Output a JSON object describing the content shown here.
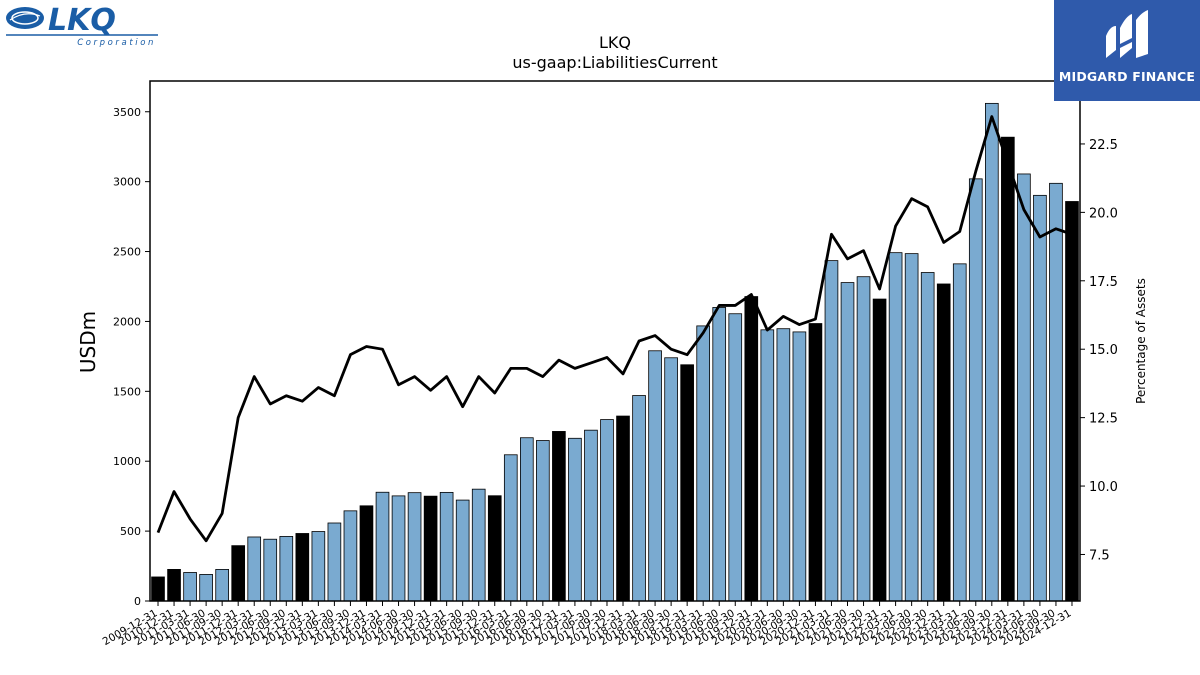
{
  "logos": {
    "lkq_text": "LKQ",
    "lkq_sub": "Corporation",
    "midgard_text": "MIDGARD FINANCE"
  },
  "colors": {
    "bar_light": "#7aaad0",
    "bar_dark": "#000000",
    "line": "#000000",
    "lkq_blue": "#1a5da6",
    "midgard_bg": "#2f5aab"
  },
  "chart_data": {
    "type": "bar",
    "title": "LKQ",
    "subtitle": "us-gaap:LiabilitiesCurrent",
    "ylabel": "USDm",
    "y2label": "Percentage of Assets",
    "ylim": [
      0,
      3720
    ],
    "y2lim": [
      5.8,
      24.8
    ],
    "yticks": [
      0,
      500,
      1000,
      1500,
      2000,
      2500,
      3000,
      3500
    ],
    "y2ticks": [
      7.5,
      10.0,
      12.5,
      15.0,
      17.5,
      20.0,
      22.5
    ],
    "grid": false,
    "categories": [
      "2009-12-31",
      "2010-12-31",
      "2011-03-31",
      "2011-06-30",
      "2011-09-30",
      "2011-12-31",
      "2012-03-31",
      "2012-06-30",
      "2012-09-30",
      "2012-12-31",
      "2013-03-31",
      "2013-06-30",
      "2013-09-30",
      "2013-12-31",
      "2014-03-31",
      "2014-06-30",
      "2014-09-30",
      "2014-12-31",
      "2015-03-31",
      "2015-06-30",
      "2015-09-30",
      "2015-12-31",
      "2016-03-31",
      "2016-06-30",
      "2016-09-30",
      "2016-12-31",
      "2017-03-31",
      "2017-06-30",
      "2017-09-30",
      "2017-12-31",
      "2018-03-31",
      "2018-06-30",
      "2018-09-30",
      "2018-12-31",
      "2019-03-31",
      "2019-06-30",
      "2019-09-30",
      "2019-12-31",
      "2020-03-31",
      "2020-06-30",
      "2020-09-30",
      "2020-12-31",
      "2021-03-31",
      "2021-06-30",
      "2021-09-30",
      "2021-12-31",
      "2022-03-31",
      "2022-06-30",
      "2022-09-30",
      "2022-12-31",
      "2023-03-31",
      "2023-06-30",
      "2023-09-30",
      "2023-12-31",
      "2024-03-31",
      "2024-06-30",
      "2024-09-30",
      "2024-12-31"
    ],
    "series": [
      {
        "kind": "bar",
        "values": [
          172,
          226,
          204,
          190,
          226,
          396,
          458,
          442,
          462,
          483,
          497,
          558,
          645,
          681,
          778,
          752,
          775,
          750,
          777,
          722,
          800,
          753,
          1046,
          1168,
          1148,
          1213,
          1164,
          1222,
          1298,
          1323,
          1470,
          1790,
          1740,
          1690,
          1968,
          2100,
          2055,
          2178,
          1940,
          1948,
          1925,
          1985,
          2435,
          2278,
          2320,
          2160,
          2492,
          2485,
          2350,
          2268,
          2412,
          3020,
          3560,
          3318,
          3055,
          2902,
          2988,
          2858
        ],
        "fiscal_year_end": [
          true,
          true,
          false,
          false,
          false,
          true,
          false,
          false,
          false,
          true,
          false,
          false,
          false,
          true,
          false,
          false,
          false,
          true,
          false,
          false,
          false,
          true,
          false,
          false,
          false,
          true,
          false,
          false,
          false,
          true,
          false,
          false,
          false,
          true,
          false,
          false,
          false,
          true,
          false,
          false,
          false,
          true,
          false,
          false,
          false,
          true,
          false,
          false,
          false,
          true,
          false,
          false,
          false,
          true,
          false,
          false,
          false,
          true
        ]
      },
      {
        "kind": "line",
        "axis": "right",
        "values": [
          8.3,
          9.8,
          8.8,
          8.0,
          9.0,
          12.5,
          14.0,
          13.0,
          13.3,
          13.1,
          13.6,
          13.3,
          14.8,
          15.1,
          15.0,
          13.7,
          14.0,
          13.5,
          14.0,
          12.9,
          14.0,
          13.4,
          14.3,
          14.3,
          14.0,
          14.6,
          14.3,
          14.5,
          14.7,
          14.1,
          15.3,
          15.5,
          15.0,
          14.8,
          15.6,
          16.6,
          16.6,
          17.0,
          15.7,
          16.2,
          15.9,
          16.1,
          19.2,
          18.3,
          18.6,
          17.2,
          19.5,
          20.5,
          20.2,
          18.9,
          19.3,
          21.5,
          23.5,
          21.8,
          20.1,
          19.1,
          19.4,
          19.2
        ]
      }
    ]
  }
}
